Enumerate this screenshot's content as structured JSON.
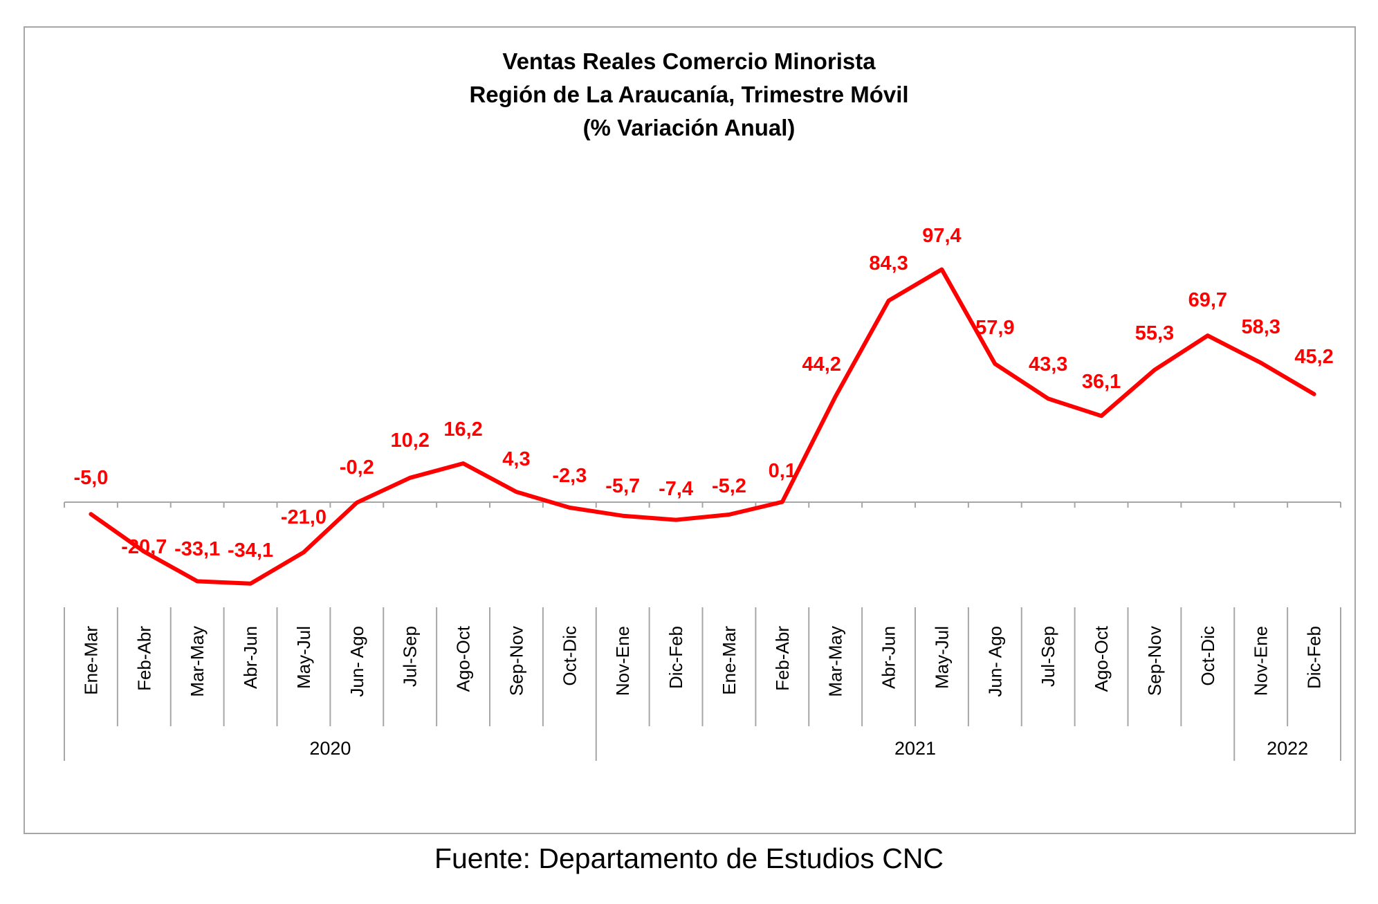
{
  "chart_data": {
    "type": "line",
    "title": [
      "Ventas Reales Comercio Minorista",
      "Región de La Araucanía, Trimestre Móvil",
      "(% Variación Anual)"
    ],
    "categories": [
      "Ene-Mar",
      "Feb-Abr",
      "Mar-May",
      "Abr-Jun",
      "May-Jul",
      "Jun- Ago",
      "Jul-Sep",
      "Ago-Oct",
      "Sep-Nov",
      "Oct-Dic",
      "Nov-Ene",
      "Dic-Feb",
      "Ene-Mar",
      "Feb-Abr",
      "Mar-May",
      "Abr-Jun",
      "May-Jul",
      "Jun- Ago",
      "Jul-Sep",
      "Ago-Oct",
      "Sep-Nov",
      "Oct-Dic",
      "Nov-Ene",
      "Dic-Feb"
    ],
    "year_groups": [
      {
        "label": "2020",
        "start": 0,
        "end": 9
      },
      {
        "label": "2021",
        "start": 10,
        "end": 21
      },
      {
        "label": "2022",
        "start": 22,
        "end": 23
      }
    ],
    "series": [
      {
        "values": [
          -5.0,
          -20.7,
          -33.1,
          -34.1,
          -21.0,
          -0.2,
          10.2,
          16.2,
          4.3,
          -2.3,
          -5.7,
          -7.4,
          -5.2,
          0.1,
          44.2,
          84.3,
          97.4,
          57.9,
          43.3,
          36.1,
          55.3,
          69.7,
          58.3,
          45.2
        ],
        "labels": [
          "-5,0",
          "-20,7",
          "-33,1",
          "-34,1",
          "-21,0",
          "-0,2",
          "10,2",
          "16,2",
          "4,3",
          "-2,3",
          "-5,7",
          "-7,4",
          "-5,2",
          "0,1",
          "44,2",
          "84,3",
          "97,4",
          "57,9",
          "43,3",
          "36,1",
          "55,3",
          "69,7",
          "58,3",
          "45,2"
        ],
        "color": "#ff0000"
      }
    ],
    "ylim": [
      -45,
      112
    ],
    "grid": false,
    "legend": "none"
  },
  "source": "Fuente: Departamento de Estudios CNC"
}
